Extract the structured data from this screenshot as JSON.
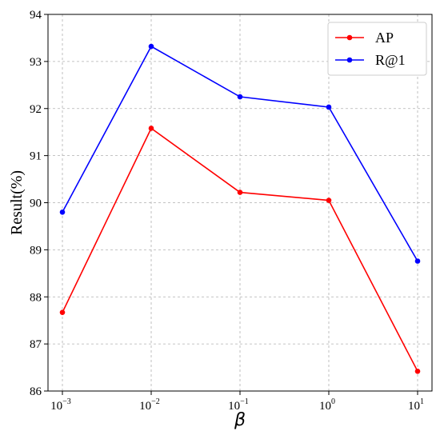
{
  "chart_data": {
    "type": "line",
    "x": [
      0.001,
      0.01,
      0.1,
      1,
      10
    ],
    "xscale": "log",
    "x_tick_labels": [
      {
        "base": "10",
        "exp": "−3"
      },
      {
        "base": "10",
        "exp": "−2"
      },
      {
        "base": "10",
        "exp": "−1"
      },
      {
        "base": "10",
        "exp": "0"
      },
      {
        "base": "10",
        "exp": "1"
      }
    ],
    "ylim": [
      86,
      94
    ],
    "yticks": [
      86,
      87,
      88,
      89,
      90,
      91,
      92,
      93,
      94
    ],
    "xlabel": "β",
    "ylabel": "Result(%)",
    "grid": true,
    "legend": "top-right",
    "series": [
      {
        "name": "AP",
        "color": "#ff0000",
        "values": [
          87.67,
          91.58,
          90.22,
          90.05,
          86.42
        ]
      },
      {
        "name": "R@1",
        "color": "#0000ff",
        "values": [
          89.8,
          93.32,
          92.25,
          92.03,
          88.76
        ]
      }
    ]
  }
}
